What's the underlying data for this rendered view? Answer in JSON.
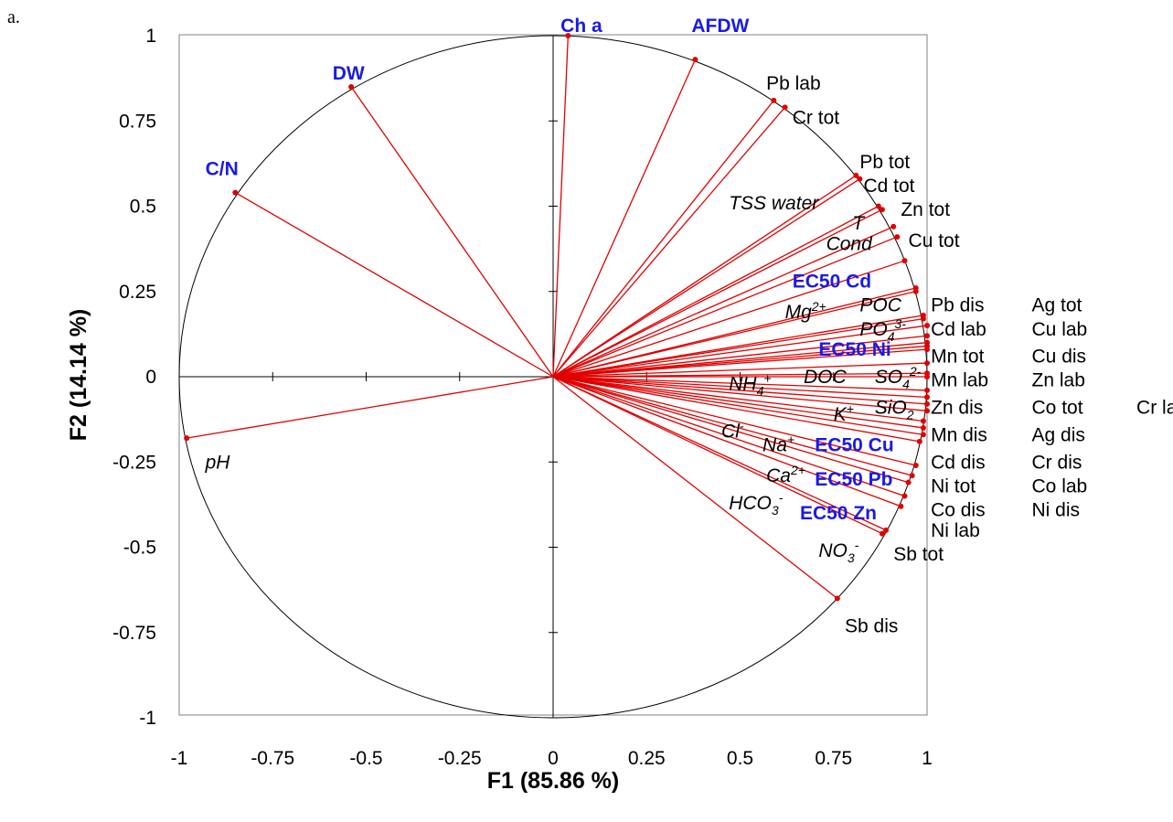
{
  "panel_label": "a.",
  "chart_data": {
    "type": "scatter",
    "subtype": "pca-correlation-circle",
    "xlabel": "F1 (85.86 %)",
    "ylabel": "F2 (14.14 %)",
    "xlim": [
      -1,
      1
    ],
    "ylim": [
      -1,
      1
    ],
    "x_ticks": [
      "-1",
      "-0.75",
      "-0.5",
      "-0.25",
      "0",
      "0.25",
      "0.5",
      "0.75",
      "1"
    ],
    "y_ticks": [
      "1",
      "0.75",
      "0.5",
      "0.25",
      "0",
      "-0.25",
      "-0.5",
      "-0.75",
      "-1"
    ],
    "grid": false,
    "unit_circle": true,
    "colors": {
      "vector": "#e00000",
      "circle": "#000000",
      "highlight_label": "#1a1ae6"
    },
    "vectors": [
      {
        "x": 0.04,
        "y": 1.0
      },
      {
        "x": 0.38,
        "y": 0.93
      },
      {
        "x": -0.54,
        "y": 0.85
      },
      {
        "x": -0.85,
        "y": 0.54
      },
      {
        "x": 0.59,
        "y": 0.81
      },
      {
        "x": 0.62,
        "y": 0.79
      },
      {
        "x": 0.81,
        "y": 0.59
      },
      {
        "x": 0.82,
        "y": 0.58
      },
      {
        "x": 0.87,
        "y": 0.5
      },
      {
        "x": 0.88,
        "y": 0.49
      },
      {
        "x": 0.91,
        "y": 0.44
      },
      {
        "x": 0.92,
        "y": 0.41
      },
      {
        "x": 0.94,
        "y": 0.34
      },
      {
        "x": 0.97,
        "y": 0.26
      },
      {
        "x": 0.97,
        "y": 0.25
      },
      {
        "x": 0.99,
        "y": 0.18
      },
      {
        "x": 0.99,
        "y": 0.17
      },
      {
        "x": 1.0,
        "y": 0.15
      },
      {
        "x": 1.0,
        "y": 0.12
      },
      {
        "x": 1.0,
        "y": 0.1
      },
      {
        "x": 1.0,
        "y": 0.09
      },
      {
        "x": 1.0,
        "y": 0.08
      },
      {
        "x": 1.0,
        "y": 0.04
      },
      {
        "x": 1.0,
        "y": 0.01
      },
      {
        "x": 1.0,
        "y": 0.0
      },
      {
        "x": 1.0,
        "y": -0.04
      },
      {
        "x": 1.0,
        "y": -0.06
      },
      {
        "x": 1.0,
        "y": -0.08
      },
      {
        "x": 1.0,
        "y": -0.1
      },
      {
        "x": 0.99,
        "y": -0.13
      },
      {
        "x": 0.99,
        "y": -0.15
      },
      {
        "x": 0.99,
        "y": -0.17
      },
      {
        "x": 0.98,
        "y": -0.19
      },
      {
        "x": 0.97,
        "y": -0.26
      },
      {
        "x": 0.96,
        "y": -0.29
      },
      {
        "x": 0.95,
        "y": -0.31
      },
      {
        "x": 0.94,
        "y": -0.35
      },
      {
        "x": 0.93,
        "y": -0.38
      },
      {
        "x": 0.89,
        "y": -0.45
      },
      {
        "x": 0.88,
        "y": -0.46
      },
      {
        "x": 0.76,
        "y": -0.65
      },
      {
        "x": -0.98,
        "y": -0.18
      }
    ],
    "labels": [
      {
        "text": "Ch a",
        "sup": "",
        "sub": "",
        "x": 0.02,
        "y": 1.03,
        "style": "blue"
      },
      {
        "text": "AFDW",
        "sup": "",
        "sub": "",
        "x": 0.37,
        "y": 1.03,
        "style": "blue"
      },
      {
        "text": "DW",
        "sup": "",
        "sub": "",
        "x": -0.59,
        "y": 0.89,
        "style": "blue"
      },
      {
        "text": "C/N",
        "sup": "",
        "sub": "",
        "x": -0.93,
        "y": 0.61,
        "style": "blue"
      },
      {
        "text": "Pb lab",
        "sup": "",
        "sub": "",
        "x": 0.57,
        "y": 0.86,
        "style": "plain"
      },
      {
        "text": "Cr tot",
        "sup": "",
        "sub": "",
        "x": 0.64,
        "y": 0.76,
        "style": "plain"
      },
      {
        "text": "Pb tot",
        "sup": "",
        "sub": "",
        "x": 0.82,
        "y": 0.63,
        "style": "plain"
      },
      {
        "text": "Cd tot",
        "sup": "",
        "sub": "",
        "x": 0.83,
        "y": 0.56,
        "style": "plain"
      },
      {
        "text": "TSS water",
        "sup": "",
        "sub": "",
        "x": 0.47,
        "y": 0.51,
        "style": "italic"
      },
      {
        "text": "Zn tot",
        "sup": "",
        "sub": "",
        "x": 0.93,
        "y": 0.49,
        "style": "plain"
      },
      {
        "text": "T",
        "sup": "",
        "sub": "",
        "x": 0.8,
        "y": 0.45,
        "style": "italic"
      },
      {
        "text": "Cu tot",
        "sup": "",
        "sub": "",
        "x": 0.95,
        "y": 0.4,
        "style": "plain"
      },
      {
        "text": "Cond",
        "sup": "",
        "sub": "",
        "x": 0.73,
        "y": 0.39,
        "style": "italic"
      },
      {
        "text": "EC50 Cd",
        "sup": "",
        "sub": "",
        "x": 0.64,
        "y": 0.28,
        "style": "blue"
      },
      {
        "text": "POC",
        "sup": "",
        "sub": "",
        "x": 0.82,
        "y": 0.21,
        "style": "italic"
      },
      {
        "text": "Pb dis",
        "sup": "",
        "sub": "",
        "x": 1.01,
        "y": 0.21,
        "style": "plain"
      },
      {
        "text": "Ag tot",
        "sup": "",
        "sub": "",
        "x": 1.28,
        "y": 0.21,
        "style": "plain"
      },
      {
        "text": "Mg",
        "sup": "2+",
        "sub": "",
        "x": 0.62,
        "y": 0.19,
        "style": "italic"
      },
      {
        "text": "PO",
        "sup": "3-",
        "sub": "4",
        "x": 0.82,
        "y": 0.14,
        "style": "italic"
      },
      {
        "text": "Cd lab",
        "sup": "",
        "sub": "",
        "x": 1.01,
        "y": 0.14,
        "style": "plain"
      },
      {
        "text": "Cu lab",
        "sup": "",
        "sub": "",
        "x": 1.28,
        "y": 0.14,
        "style": "plain"
      },
      {
        "text": "EC50 Ni",
        "sup": "",
        "sub": "",
        "x": 0.71,
        "y": 0.08,
        "style": "blue"
      },
      {
        "text": "Mn tot",
        "sup": "",
        "sub": "",
        "x": 1.01,
        "y": 0.06,
        "style": "plain"
      },
      {
        "text": "Cu dis",
        "sup": "",
        "sub": "",
        "x": 1.28,
        "y": 0.06,
        "style": "plain"
      },
      {
        "text": "NH",
        "sup": "+",
        "sub": "4",
        "x": 0.47,
        "y": -0.02,
        "style": "italic"
      },
      {
        "text": "DOC",
        "sup": "",
        "sub": "",
        "x": 0.67,
        "y": 0.0,
        "style": "italic"
      },
      {
        "text": "SO",
        "sup": "2-",
        "sub": "4",
        "x": 0.86,
        "y": 0.0,
        "style": "italic"
      },
      {
        "text": "Mn lab",
        "sup": "",
        "sub": "",
        "x": 1.01,
        "y": -0.01,
        "style": "plain"
      },
      {
        "text": "Zn lab",
        "sup": "",
        "sub": "",
        "x": 1.28,
        "y": -0.01,
        "style": "plain"
      },
      {
        "text": "K",
        "sup": "+",
        "sub": "",
        "x": 0.75,
        "y": -0.11,
        "style": "italic"
      },
      {
        "text": "SiO",
        "sup": "",
        "sub": "2",
        "x": 0.86,
        "y": -0.09,
        "style": "italic"
      },
      {
        "text": "Zn dis",
        "sup": "",
        "sub": "",
        "x": 1.01,
        "y": -0.09,
        "style": "plain"
      },
      {
        "text": "Co tot",
        "sup": "",
        "sub": "",
        "x": 1.28,
        "y": -0.09,
        "style": "plain"
      },
      {
        "text": "Cr lab",
        "sup": "",
        "sub": "",
        "x": 1.56,
        "y": -0.09,
        "style": "plain"
      },
      {
        "text": "Cl",
        "sup": "-",
        "sub": "",
        "x": 0.45,
        "y": -0.16,
        "style": "italic"
      },
      {
        "text": "Na",
        "sup": "+",
        "sub": "",
        "x": 0.56,
        "y": -0.2,
        "style": "italic"
      },
      {
        "text": "EC50 Cu",
        "sup": "",
        "sub": "",
        "x": 0.7,
        "y": -0.2,
        "style": "blue"
      },
      {
        "text": "Mn dis",
        "sup": "",
        "sub": "",
        "x": 1.01,
        "y": -0.17,
        "style": "plain"
      },
      {
        "text": "Ag dis",
        "sup": "",
        "sub": "",
        "x": 1.28,
        "y": -0.17,
        "style": "plain"
      },
      {
        "text": "Cd dis",
        "sup": "",
        "sub": "",
        "x": 1.01,
        "y": -0.25,
        "style": "plain"
      },
      {
        "text": "Cr dis",
        "sup": "",
        "sub": "",
        "x": 1.28,
        "y": -0.25,
        "style": "plain"
      },
      {
        "text": "Ca",
        "sup": "2+",
        "sub": "",
        "x": 0.57,
        "y": -0.29,
        "style": "italic"
      },
      {
        "text": "EC50 Pb",
        "sup": "",
        "sub": "",
        "x": 0.7,
        "y": -0.3,
        "style": "blue"
      },
      {
        "text": "Ni tot",
        "sup": "",
        "sub": "",
        "x": 1.01,
        "y": -0.32,
        "style": "plain"
      },
      {
        "text": "Co lab",
        "sup": "",
        "sub": "",
        "x": 1.28,
        "y": -0.32,
        "style": "plain"
      },
      {
        "text": "HCO",
        "sup": "-",
        "sub": "3",
        "x": 0.47,
        "y": -0.37,
        "style": "italic"
      },
      {
        "text": "EC50 Zn",
        "sup": "",
        "sub": "",
        "x": 0.66,
        "y": -0.4,
        "style": "blue"
      },
      {
        "text": "Co dis",
        "sup": "",
        "sub": "",
        "x": 1.01,
        "y": -0.39,
        "style": "plain"
      },
      {
        "text": "Ni dis",
        "sup": "",
        "sub": "",
        "x": 1.28,
        "y": -0.39,
        "style": "plain"
      },
      {
        "text": "Ni lab",
        "sup": "",
        "sub": "",
        "x": 1.01,
        "y": -0.45,
        "style": "plain"
      },
      {
        "text": "NO",
        "sup": "-",
        "sub": "3",
        "x": 0.71,
        "y": -0.51,
        "style": "italic"
      },
      {
        "text": "Sb tot",
        "sup": "",
        "sub": "",
        "x": 0.91,
        "y": -0.52,
        "style": "plain"
      },
      {
        "text": "Sb dis",
        "sup": "",
        "sub": "",
        "x": 0.78,
        "y": -0.73,
        "style": "plain"
      },
      {
        "text": "pH",
        "sup": "",
        "sub": "",
        "x": -0.93,
        "y": -0.25,
        "style": "italic"
      }
    ]
  }
}
